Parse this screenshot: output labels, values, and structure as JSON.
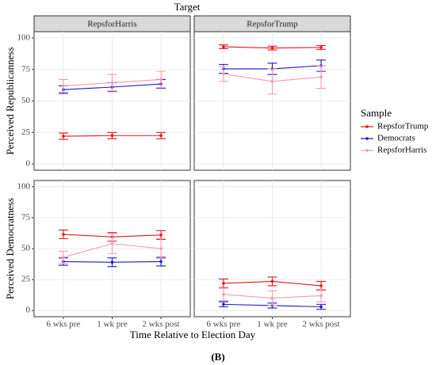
{
  "title": "Target",
  "xlabel": "Time Relative to Election Day",
  "caption": "(B)",
  "legend": {
    "title": "Sample",
    "entries": [
      {
        "name": "RepsforTrump",
        "color": "#e4161b"
      },
      {
        "name": "Democrats",
        "color": "#1d18c9"
      },
      {
        "name": "RepsforHarris",
        "color": "#f49ab0"
      }
    ]
  },
  "chart_data": [
    {
      "type": "line",
      "strip": "RepsforHarris",
      "ylabel": "Perceived Republicanness",
      "ylim": [
        -5,
        105
      ],
      "yticks": [
        0,
        25,
        50,
        75,
        100
      ],
      "grid": true,
      "series": [
        {
          "values": [
            22,
            22.5,
            22.5
          ],
          "errors": [
            2.5,
            2.5,
            2.5
          ]
        },
        {
          "values": [
            59,
            61,
            63.5
          ],
          "errors": [
            3,
            3.5,
            3.5
          ]
        },
        {
          "values": [
            62,
            64.5,
            67
          ],
          "errors": [
            5,
            6.5,
            6.5
          ]
        }
      ]
    },
    {
      "type": "line",
      "strip": "RepsforTrump",
      "ylim": [
        -5,
        105
      ],
      "yticks": [
        0,
        25,
        50,
        75,
        100
      ],
      "grid": true,
      "series": [
        {
          "values": [
            93,
            92,
            92.5
          ],
          "errors": [
            1.5,
            1.5,
            1.5
          ]
        },
        {
          "values": [
            75.5,
            75.5,
            78
          ],
          "errors": [
            3.5,
            4.5,
            4.5
          ]
        },
        {
          "values": [
            71.5,
            65.5,
            69
          ],
          "errors": [
            6,
            10,
            9
          ]
        }
      ]
    },
    {
      "type": "line",
      "ylabel": "Perceived Democratness",
      "categories": [
        "6 wks pre",
        "1 wk pre",
        "2 wks post"
      ],
      "ylim": [
        -5,
        105
      ],
      "yticks": [
        0,
        25,
        50,
        75,
        100
      ],
      "grid": true,
      "series": [
        {
          "values": [
            61.5,
            59.5,
            61
          ],
          "errors": [
            3.5,
            3.5,
            3.5
          ]
        },
        {
          "values": [
            39.5,
            39,
            39.5
          ],
          "errors": [
            3,
            3.5,
            3.5
          ]
        },
        {
          "values": [
            43,
            54,
            50
          ],
          "errors": [
            5,
            8,
            8
          ]
        }
      ]
    },
    {
      "type": "line",
      "categories": [
        "6 wks pre",
        "1 wk pre",
        "2 wks post"
      ],
      "ylim": [
        -5,
        105
      ],
      "yticks": [
        0,
        25,
        50,
        75,
        100
      ],
      "grid": true,
      "series": [
        {
          "values": [
            22,
            23.5,
            20
          ],
          "errors": [
            3.5,
            3.5,
            3.5
          ]
        },
        {
          "values": [
            5,
            4,
            3
          ],
          "errors": [
            2,
            2,
            2
          ]
        },
        {
          "values": [
            13,
            10,
            12
          ],
          "errors": [
            5,
            6,
            5
          ]
        }
      ]
    }
  ]
}
